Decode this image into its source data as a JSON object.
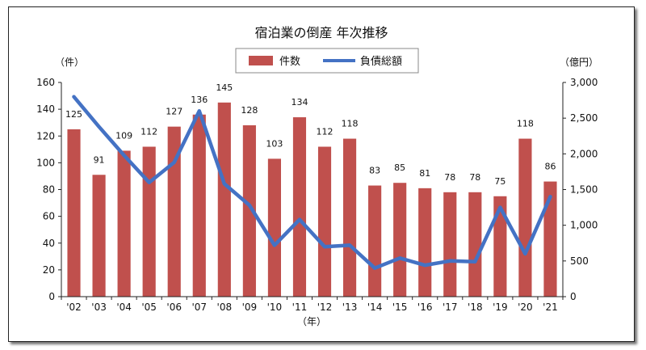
{
  "chart_data": {
    "type": "bar",
    "title": "宿泊業の倒産 年次推移",
    "ylabel_left": "（件）",
    "ylabel_right": "（億円）",
    "xlabel": "（年）",
    "categories": [
      "'02",
      "'03",
      "'04",
      "'05",
      "'06",
      "'07",
      "'08",
      "'09",
      "'10",
      "'11",
      "'12",
      "'13",
      "'14",
      "'15",
      "'16",
      "'17",
      "'18",
      "'19",
      "'20",
      "'21"
    ],
    "left_ticks": [
      "0",
      "20",
      "40",
      "60",
      "80",
      "100",
      "120",
      "140",
      "160"
    ],
    "right_ticks": [
      "0",
      "500",
      "1,000",
      "1,500",
      "2,000",
      "2,500",
      "3,000"
    ],
    "ylim_left": [
      0,
      160
    ],
    "ylim_right": [
      0,
      3000
    ],
    "grid": false,
    "legend_position": "top-center",
    "series": [
      {
        "name": "件数",
        "type": "bar",
        "axis": "left",
        "color": "#c0504d",
        "values": [
          125,
          91,
          109,
          112,
          127,
          136,
          145,
          128,
          103,
          134,
          112,
          118,
          83,
          85,
          81,
          78,
          78,
          75,
          118,
          86
        ]
      },
      {
        "name": "負債総額",
        "type": "line",
        "axis": "right",
        "color": "#4472c4",
        "values": [
          2800,
          2380,
          1980,
          1600,
          1880,
          2600,
          1580,
          1280,
          720,
          1080,
          700,
          720,
          400,
          540,
          440,
          500,
          490,
          1250,
          600,
          1400
        ]
      }
    ]
  }
}
